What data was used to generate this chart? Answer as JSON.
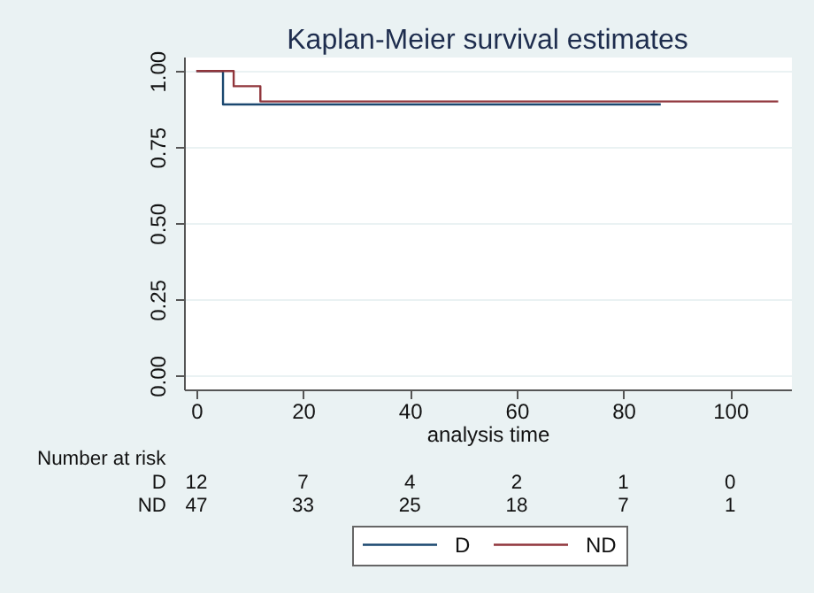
{
  "chart_data": {
    "type": "step",
    "title": "Kaplan-Meier survival estimates",
    "xlabel": "analysis time",
    "series": [
      {
        "name": "D",
        "color": "#1a476f",
        "x": [
          0,
          5,
          87
        ],
        "values": [
          1,
          0.89,
          0.89
        ]
      },
      {
        "name": "ND",
        "color": "#90353b",
        "x": [
          0,
          7,
          12,
          109
        ],
        "values": [
          1,
          0.95,
          0.9,
          0.9
        ]
      }
    ],
    "xlim": [
      -2.3,
      111.4
    ],
    "ylim": [
      -0.045,
      1.047
    ],
    "xticks": [
      0,
      20,
      40,
      60,
      80,
      100
    ],
    "yticks": [
      {
        "value": 0,
        "label": "0.00"
      },
      {
        "value": 0.25,
        "label": "0.25"
      },
      {
        "value": 0.5,
        "label": "0.50"
      },
      {
        "value": 0.75,
        "label": "0.75"
      },
      {
        "value": 1,
        "label": "1.00"
      }
    ],
    "grid": "y",
    "legend": "bottom",
    "line_style": "solid",
    "annotations": [
      "Number at risk",
      "D",
      "12",
      "7",
      "4",
      "2",
      "1",
      "0",
      "ND",
      "47",
      "33",
      "25",
      "18",
      "7",
      "1"
    ]
  }
}
